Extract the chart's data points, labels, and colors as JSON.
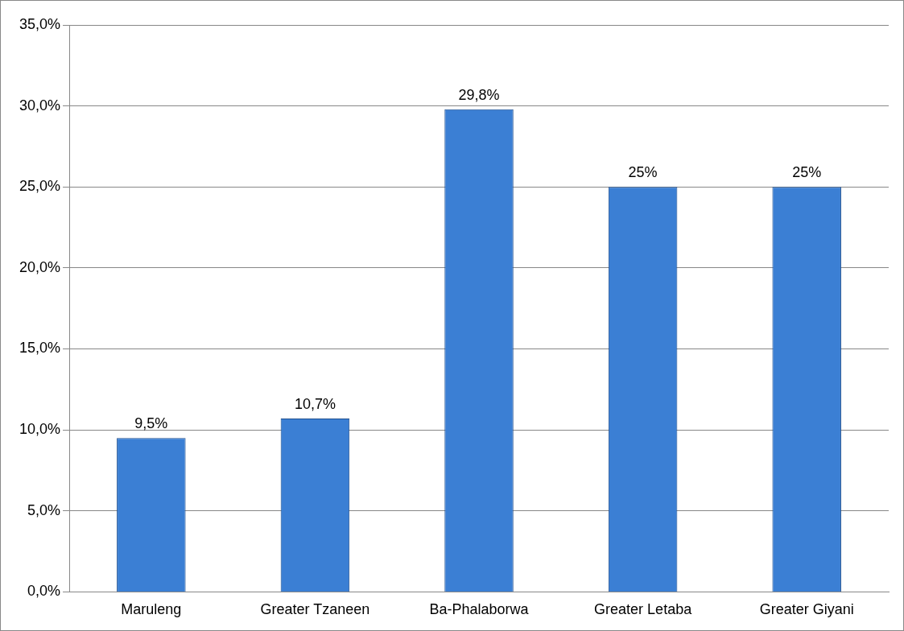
{
  "chart_data": {
    "type": "bar",
    "categories": [
      "Maruleng",
      "Greater Tzaneen",
      "Ba-Phalaborwa",
      "Greater Letaba",
      "Greater Giyani"
    ],
    "values": [
      9.5,
      10.7,
      29.8,
      25,
      25
    ],
    "value_labels": [
      "9,5%",
      "10,7%",
      "29,8%",
      "25%",
      "25%"
    ],
    "color": "#3b7fd4",
    "ylim": [
      0,
      35
    ],
    "yticks": [
      {
        "value": 0,
        "label": "0,0%"
      },
      {
        "value": 5,
        "label": "5,0%"
      },
      {
        "value": 10,
        "label": "10,0%"
      },
      {
        "value": 15,
        "label": "15,0%"
      },
      {
        "value": 20,
        "label": "20,0%"
      },
      {
        "value": 25,
        "label": "25,0%"
      },
      {
        "value": 30,
        "label": "30,0%"
      },
      {
        "value": 35,
        "label": "35,0%"
      }
    ],
    "grid": "y",
    "legend": false
  }
}
